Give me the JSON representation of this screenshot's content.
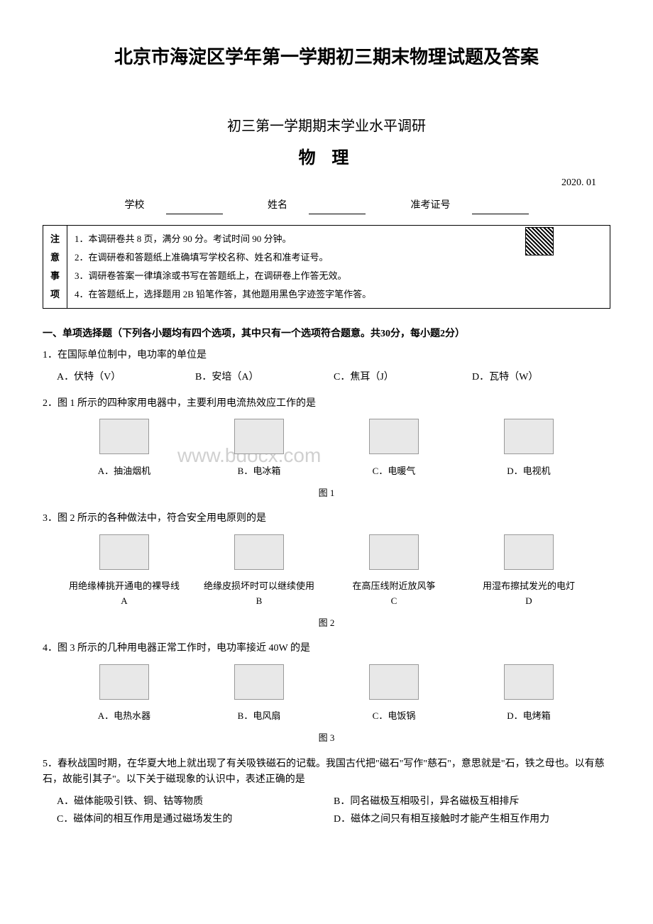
{
  "mainTitle": "北京市海淀区学年第一学期初三期末物理试题及答案",
  "subTitle": "初三第一学期期末学业水平调研",
  "subject": "物 理",
  "date": "2020. 01",
  "infoLabels": {
    "school": "学校",
    "name": "姓名",
    "examId": "准考证号"
  },
  "noticeHeader": "注意事项",
  "notices": [
    "1．本调研卷共 8 页，满分 90 分。考试时间 90 分钟。",
    "2．在调研卷和答题纸上准确填写学校名称、姓名和准考证号。",
    "3．调研卷答案一律填涂或书写在答题纸上，在调研卷上作答无效。",
    "4．在答题纸上，选择题用 2B 铅笔作答，其他题用黑色字迹签字笔作答。"
  ],
  "sectionOne": "一、单项选择题（下列各小题均有四个选项，其中只有一个选项符合题意。共30分，每小题2分）",
  "q1": {
    "text": "1．在国际单位制中，电功率的单位是",
    "optA": "A．伏特（V）",
    "optB": "B．安培（A）",
    "optC": "C．焦耳（J）",
    "optD": "D．瓦特（W）"
  },
  "q2": {
    "text": "2．图 1 所示的四种家用电器中，主要利用电流热效应工作的是",
    "optA": "A．抽油烟机",
    "optB": "B．电冰箱",
    "optC": "C．电暖气",
    "optD": "D．电视机",
    "figLabel": "图 1"
  },
  "q3": {
    "text": "3．图 2 所示的各种做法中，符合安全用电原则的是",
    "capA": "用绝缘棒挑开通电的裸导线",
    "capB": "绝缘皮损坏时可以继续使用",
    "capC": "在高压线附近放风筝",
    "capD": "用湿布擦拭发光的电灯",
    "labA": "A",
    "labB": "B",
    "labC": "C",
    "labD": "D",
    "figLabel": "图 2"
  },
  "q4": {
    "text": "4．图 3 所示的几种用电器正常工作时，电功率接近 40W 的是",
    "optA": "A．电热水器",
    "optB": "B．电风扇",
    "optC": "C．电饭锅",
    "optD": "D．电烤箱",
    "figLabel": "图 3"
  },
  "q5": {
    "text": "5．春秋战国时期，在华夏大地上就出现了有关吸铁磁石的记载。我国古代把\"磁石\"写作\"慈石\"，意思就是\"石，铁之母也。以有慈石，故能引其子\"。以下关于磁现象的认识中，表述正确的是",
    "optA": "A．磁体能吸引铁、铜、钴等物质",
    "optB": "B．同名磁极互相吸引，异名磁极互相排斥",
    "optC": "C．磁体间的相互作用是通过磁场发生的",
    "optD": "D．磁体之间只有相互接触时才能产生相互作用力"
  },
  "watermark": "www.bdocx.com"
}
